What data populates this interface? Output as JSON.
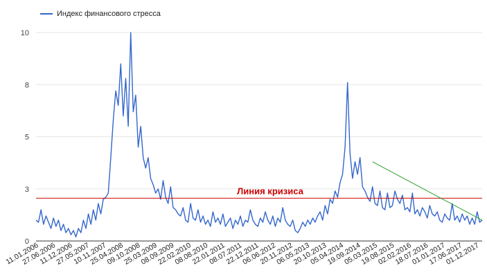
{
  "chart_data": {
    "type": "line",
    "title": "",
    "xlabel": "",
    "ylabel": "",
    "legend": {
      "position": "top-left",
      "series_name": "Индекс финансового стресса"
    },
    "ylim": [
      0,
      10
    ],
    "y_ticks": [
      "0",
      "3",
      "5",
      "8",
      "10"
    ],
    "y_tick_values": [
      0,
      2.5,
      5,
      7.5,
      10
    ],
    "x_tick_labels": [
      "11.01.2006",
      "27.06.2006",
      "11.12.2006",
      "27.05.2007",
      "10.11.2007",
      "25.04.2008",
      "09.10.2008",
      "25.03.2009",
      "08.09.2009",
      "22.02.2010",
      "08.08.2010",
      "22.01.2011",
      "08.07.2011",
      "22.12.2011",
      "06.06.2012",
      "20.11.2012",
      "06.05.2013",
      "20.10.2013",
      "05.04.2014",
      "19.09.2014",
      "05.03.2015",
      "19.08.2015",
      "02.02.2016",
      "18.07.2016",
      "01.01.2017",
      "17.06.2017",
      "01.12.2017"
    ],
    "grid": true,
    "series": [
      {
        "name": "Индекс финансового стресса",
        "color": "#3366cc",
        "x_start": "2006-01-01",
        "x_end": "2018-03-01",
        "values": [
          1.0,
          0.9,
          1.5,
          0.8,
          1.2,
          0.9,
          0.6,
          1.1,
          0.7,
          1.0,
          0.5,
          0.8,
          0.4,
          0.6,
          0.3,
          0.5,
          0.2,
          0.6,
          0.4,
          1.0,
          0.6,
          1.3,
          0.8,
          1.5,
          1.0,
          1.8,
          1.3,
          2.0,
          2.1,
          2.3,
          4.0,
          5.8,
          7.2,
          6.5,
          8.5,
          6.0,
          7.8,
          5.5,
          10.0,
          6.2,
          7.0,
          4.5,
          5.5,
          4.0,
          3.5,
          4.0,
          3.0,
          2.7,
          2.3,
          2.5,
          2.0,
          2.9,
          2.1,
          1.8,
          2.6,
          1.6,
          1.5,
          1.3,
          1.2,
          1.6,
          1.0,
          0.9,
          1.8,
          1.1,
          1.0,
          1.5,
          0.9,
          1.2,
          0.8,
          1.0,
          0.7,
          1.4,
          0.9,
          1.1,
          0.8,
          1.3,
          0.7,
          0.9,
          1.1,
          0.6,
          1.0,
          0.8,
          1.2,
          0.7,
          1.0,
          0.9,
          1.5,
          1.0,
          0.8,
          0.7,
          1.1,
          0.9,
          1.4,
          1.0,
          0.8,
          1.2,
          0.7,
          1.1,
          0.9,
          1.6,
          1.0,
          0.8,
          0.7,
          1.0,
          0.5,
          0.4,
          0.6,
          0.9,
          0.7,
          1.0,
          0.8,
          1.1,
          0.9,
          1.2,
          1.4,
          1.0,
          1.7,
          1.3,
          2.0,
          1.8,
          2.4,
          2.1,
          2.8,
          3.2,
          4.5,
          7.6,
          4.2,
          3.0,
          3.8,
          3.2,
          4.0,
          2.6,
          2.4,
          2.1,
          1.9,
          2.6,
          1.8,
          1.7,
          2.4,
          1.6,
          1.5,
          2.3,
          1.6,
          1.7,
          2.4,
          2.0,
          1.8,
          2.2,
          1.5,
          1.6,
          1.4,
          2.3,
          1.3,
          1.5,
          1.2,
          1.6,
          1.4,
          1.1,
          1.7,
          1.3,
          1.2,
          1.4,
          1.0,
          0.9,
          1.3,
          1.1,
          1.0,
          1.8,
          1.0,
          1.2,
          0.9,
          1.3,
          1.0,
          1.2,
          0.8,
          1.1,
          0.8,
          1.4,
          0.9,
          1.0
        ]
      }
    ],
    "annotations": [
      {
        "type": "hline",
        "y": 2.05,
        "label": "Линия кризиса",
        "color": "#cc0000"
      },
      {
        "type": "trendline",
        "x_start": "2015-03-05",
        "y_start": 3.8,
        "x_end": "2018-03-01",
        "y_end": 1.0,
        "color": "#2ca02c"
      }
    ]
  }
}
